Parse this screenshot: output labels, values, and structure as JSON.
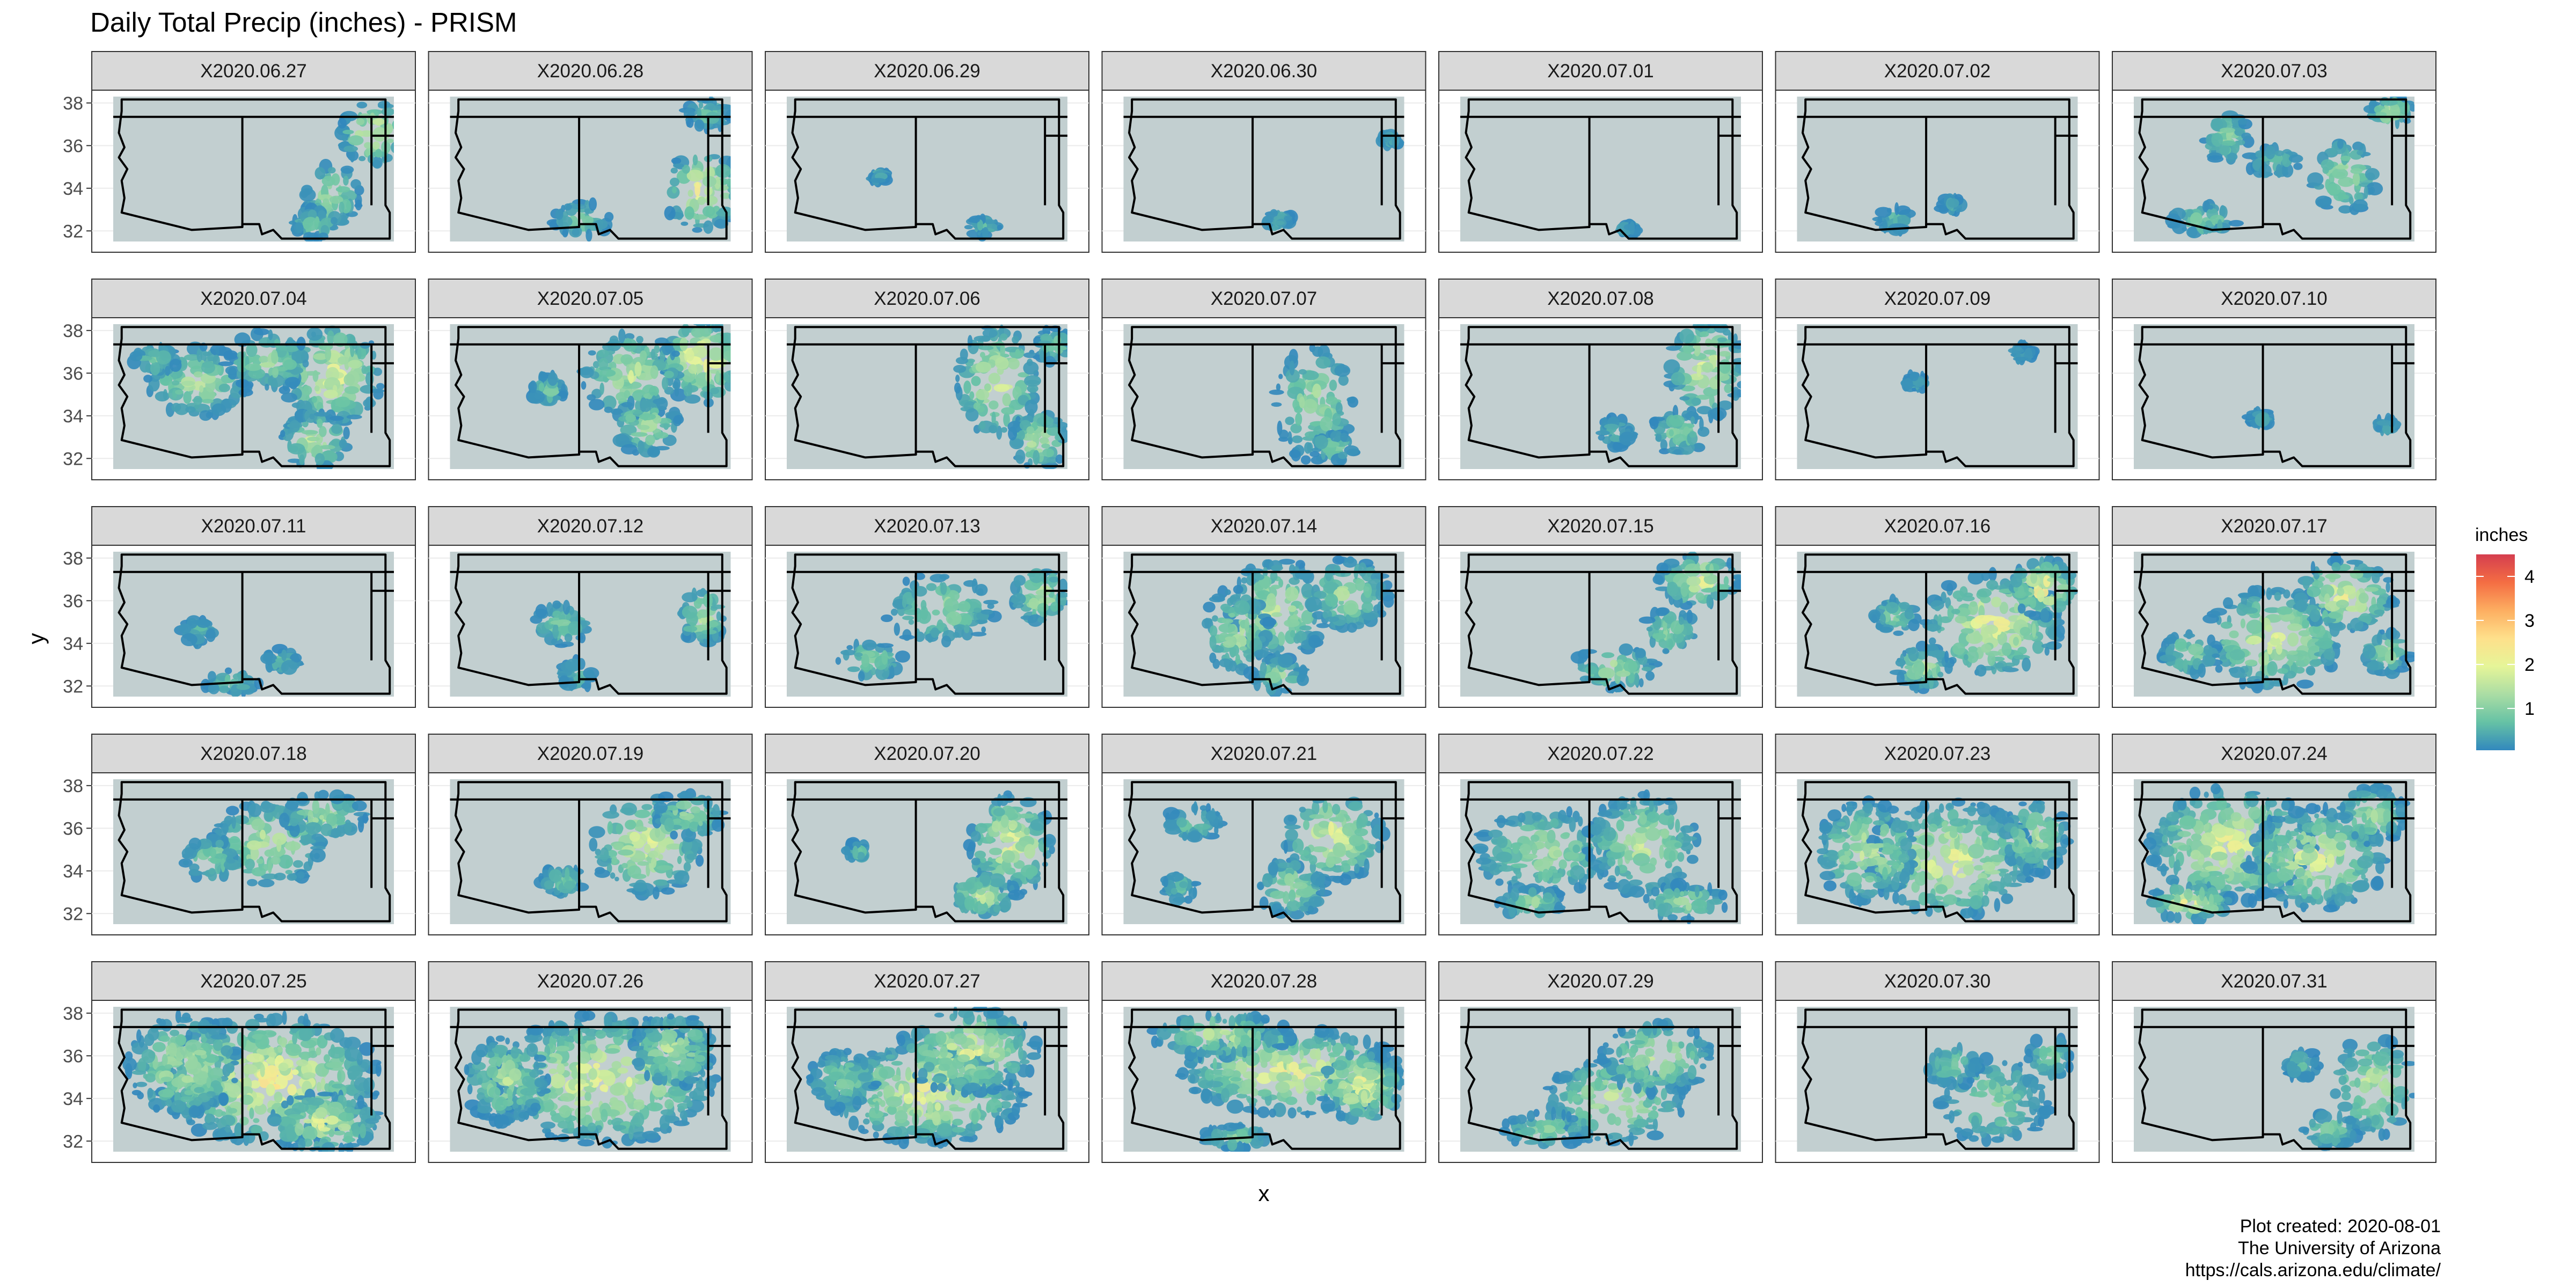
{
  "chart_data": {
    "type": "heatmap",
    "title": "Daily Total Precip (inches) - PRISM",
    "xlabel": "x",
    "ylabel": "y",
    "y_ticks": [
      32,
      34,
      36,
      38
    ],
    "ylim": [
      31,
      38.6
    ],
    "x_ticks": [],
    "grid": true,
    "facet_layout": {
      "rows": 5,
      "cols": 7
    },
    "panels": [
      {
        "label": "X2020.06.27",
        "intensity": 0.3,
        "blobs": [
          [
            0.93,
            0.25,
            0.12,
            0.22,
            0.9
          ],
          [
            0.78,
            0.68,
            0.1,
            0.22,
            0.6
          ],
          [
            0.72,
            0.88,
            0.08,
            0.1,
            0.4
          ]
        ]
      },
      {
        "label": "X2020.06.28",
        "intensity": 0.3,
        "blobs": [
          [
            0.9,
            0.65,
            0.14,
            0.28,
            0.9
          ],
          [
            0.47,
            0.85,
            0.1,
            0.12,
            0.4
          ],
          [
            0.92,
            0.12,
            0.08,
            0.1,
            0.4
          ]
        ]
      },
      {
        "label": "X2020.06.29",
        "intensity": 0.1,
        "blobs": [
          [
            0.7,
            0.9,
            0.06,
            0.06,
            0.3
          ],
          [
            0.33,
            0.55,
            0.03,
            0.04,
            0.2
          ]
        ]
      },
      {
        "label": "X2020.06.30",
        "intensity": 0.1,
        "blobs": [
          [
            0.55,
            0.85,
            0.05,
            0.05,
            0.3
          ],
          [
            0.95,
            0.3,
            0.04,
            0.04,
            0.2
          ]
        ]
      },
      {
        "label": "X2020.07.01",
        "intensity": 0.05,
        "blobs": [
          [
            0.6,
            0.92,
            0.03,
            0.03,
            0.2
          ]
        ]
      },
      {
        "label": "X2020.07.02",
        "intensity": 0.1,
        "blobs": [
          [
            0.35,
            0.85,
            0.06,
            0.08,
            0.3
          ],
          [
            0.55,
            0.75,
            0.04,
            0.05,
            0.2
          ]
        ]
      },
      {
        "label": "X2020.07.03",
        "intensity": 0.35,
        "blobs": [
          [
            0.33,
            0.28,
            0.08,
            0.18,
            0.5
          ],
          [
            0.75,
            0.55,
            0.12,
            0.25,
            0.6
          ],
          [
            0.25,
            0.85,
            0.12,
            0.1,
            0.5
          ],
          [
            0.92,
            0.1,
            0.08,
            0.1,
            0.7
          ],
          [
            0.5,
            0.45,
            0.1,
            0.1,
            0.3
          ]
        ]
      },
      {
        "label": "X2020.07.04",
        "intensity": 0.55,
        "blobs": [
          [
            0.3,
            0.4,
            0.18,
            0.25,
            0.6
          ],
          [
            0.78,
            0.35,
            0.18,
            0.35,
            0.9
          ],
          [
            0.55,
            0.25,
            0.15,
            0.2,
            0.6
          ],
          [
            0.72,
            0.8,
            0.12,
            0.2,
            0.7
          ],
          [
            0.15,
            0.25,
            0.08,
            0.1,
            0.4
          ]
        ]
      },
      {
        "label": "X2020.07.05",
        "intensity": 0.6,
        "blobs": [
          [
            0.9,
            0.25,
            0.15,
            0.3,
            1.0
          ],
          [
            0.65,
            0.35,
            0.18,
            0.3,
            0.7
          ],
          [
            0.7,
            0.7,
            0.12,
            0.2,
            0.6
          ],
          [
            0.35,
            0.45,
            0.06,
            0.1,
            0.4
          ]
        ]
      },
      {
        "label": "X2020.07.06",
        "intensity": 0.45,
        "blobs": [
          [
            0.75,
            0.4,
            0.15,
            0.4,
            0.8
          ],
          [
            0.9,
            0.8,
            0.1,
            0.2,
            0.7
          ],
          [
            0.95,
            0.15,
            0.06,
            0.12,
            0.5
          ]
        ]
      },
      {
        "label": "X2020.07.07",
        "intensity": 0.3,
        "blobs": [
          [
            0.68,
            0.55,
            0.14,
            0.4,
            0.6
          ],
          [
            0.75,
            0.85,
            0.08,
            0.1,
            0.4
          ]
        ]
      },
      {
        "label": "X2020.07.08",
        "intensity": 0.4,
        "blobs": [
          [
            0.88,
            0.3,
            0.14,
            0.35,
            0.8
          ],
          [
            0.78,
            0.75,
            0.1,
            0.15,
            0.5
          ],
          [
            0.55,
            0.75,
            0.06,
            0.1,
            0.3
          ]
        ]
      },
      {
        "label": "X2020.07.09",
        "intensity": 0.1,
        "blobs": [
          [
            0.42,
            0.4,
            0.04,
            0.05,
            0.2
          ],
          [
            0.8,
            0.2,
            0.04,
            0.05,
            0.2
          ]
        ]
      },
      {
        "label": "X2020.07.10",
        "intensity": 0.1,
        "blobs": [
          [
            0.45,
            0.65,
            0.04,
            0.05,
            0.2
          ],
          [
            0.9,
            0.7,
            0.04,
            0.05,
            0.2
          ]
        ]
      },
      {
        "label": "X2020.07.11",
        "intensity": 0.2,
        "blobs": [
          [
            0.3,
            0.55,
            0.06,
            0.08,
            0.3
          ],
          [
            0.42,
            0.9,
            0.1,
            0.08,
            0.4
          ],
          [
            0.6,
            0.75,
            0.06,
            0.08,
            0.3
          ]
        ]
      },
      {
        "label": "X2020.07.12",
        "intensity": 0.3,
        "blobs": [
          [
            0.4,
            0.5,
            0.1,
            0.15,
            0.4
          ],
          [
            0.9,
            0.45,
            0.08,
            0.2,
            0.7
          ],
          [
            0.45,
            0.85,
            0.06,
            0.1,
            0.3
          ]
        ]
      },
      {
        "label": "X2020.07.13",
        "intensity": 0.4,
        "blobs": [
          [
            0.55,
            0.4,
            0.2,
            0.25,
            0.5
          ],
          [
            0.9,
            0.3,
            0.1,
            0.2,
            0.7
          ],
          [
            0.3,
            0.75,
            0.12,
            0.12,
            0.5
          ]
        ]
      },
      {
        "label": "X2020.07.14",
        "intensity": 0.55,
        "blobs": [
          [
            0.55,
            0.4,
            0.18,
            0.35,
            0.7
          ],
          [
            0.4,
            0.55,
            0.12,
            0.3,
            0.6
          ],
          [
            0.8,
            0.3,
            0.15,
            0.25,
            0.6
          ],
          [
            0.55,
            0.85,
            0.1,
            0.12,
            0.5
          ]
        ]
      },
      {
        "label": "X2020.07.15",
        "intensity": 0.45,
        "blobs": [
          [
            0.85,
            0.2,
            0.15,
            0.18,
            0.8
          ],
          [
            0.55,
            0.8,
            0.15,
            0.15,
            0.6
          ],
          [
            0.75,
            0.55,
            0.1,
            0.15,
            0.5
          ]
        ]
      },
      {
        "label": "X2020.07.16",
        "intensity": 0.65,
        "blobs": [
          [
            0.7,
            0.5,
            0.25,
            0.35,
            0.9
          ],
          [
            0.88,
            0.25,
            0.12,
            0.2,
            1.0
          ],
          [
            0.35,
            0.45,
            0.08,
            0.12,
            0.5
          ],
          [
            0.45,
            0.8,
            0.1,
            0.15,
            0.6
          ]
        ]
      },
      {
        "label": "X2020.07.17",
        "intensity": 0.6,
        "blobs": [
          [
            0.5,
            0.6,
            0.25,
            0.35,
            0.8
          ],
          [
            0.75,
            0.3,
            0.18,
            0.25,
            0.9
          ],
          [
            0.2,
            0.7,
            0.1,
            0.15,
            0.5
          ],
          [
            0.9,
            0.7,
            0.08,
            0.15,
            0.6
          ]
        ]
      },
      {
        "label": "X2020.07.18",
        "intensity": 0.55,
        "blobs": [
          [
            0.55,
            0.45,
            0.2,
            0.3,
            0.7
          ],
          [
            0.75,
            0.25,
            0.15,
            0.15,
            0.6
          ],
          [
            0.35,
            0.55,
            0.1,
            0.15,
            0.5
          ]
        ]
      },
      {
        "label": "X2020.07.19",
        "intensity": 0.5,
        "blobs": [
          [
            0.7,
            0.45,
            0.2,
            0.35,
            0.8
          ],
          [
            0.85,
            0.25,
            0.12,
            0.15,
            0.7
          ],
          [
            0.4,
            0.7,
            0.08,
            0.1,
            0.4
          ]
        ]
      },
      {
        "label": "X2020.07.20",
        "intensity": 0.55,
        "blobs": [
          [
            0.8,
            0.45,
            0.15,
            0.35,
            0.9
          ],
          [
            0.7,
            0.8,
            0.12,
            0.15,
            0.7
          ],
          [
            0.25,
            0.5,
            0.04,
            0.06,
            0.3
          ]
        ]
      },
      {
        "label": "X2020.07.21",
        "intensity": 0.5,
        "blobs": [
          [
            0.75,
            0.4,
            0.18,
            0.3,
            0.9
          ],
          [
            0.6,
            0.75,
            0.12,
            0.2,
            0.6
          ],
          [
            0.25,
            0.3,
            0.1,
            0.12,
            0.4
          ],
          [
            0.2,
            0.75,
            0.06,
            0.1,
            0.3
          ]
        ]
      },
      {
        "label": "X2020.07.22",
        "intensity": 0.55,
        "blobs": [
          [
            0.3,
            0.5,
            0.25,
            0.3,
            0.6
          ],
          [
            0.65,
            0.45,
            0.2,
            0.35,
            0.7
          ],
          [
            0.25,
            0.85,
            0.12,
            0.1,
            0.5
          ],
          [
            0.8,
            0.85,
            0.15,
            0.12,
            0.6
          ]
        ]
      },
      {
        "label": "X2020.07.23",
        "intensity": 0.7,
        "blobs": [
          [
            0.55,
            0.55,
            0.3,
            0.4,
            0.9
          ],
          [
            0.25,
            0.5,
            0.18,
            0.35,
            0.7
          ],
          [
            0.85,
            0.4,
            0.12,
            0.25,
            0.6
          ]
        ]
      },
      {
        "label": "X2020.07.24",
        "intensity": 0.75,
        "blobs": [
          [
            0.35,
            0.45,
            0.3,
            0.4,
            0.9
          ],
          [
            0.65,
            0.55,
            0.25,
            0.35,
            0.8
          ],
          [
            0.2,
            0.85,
            0.15,
            0.12,
            0.9
          ],
          [
            0.85,
            0.25,
            0.12,
            0.2,
            0.6
          ]
        ]
      },
      {
        "label": "X2020.07.25",
        "intensity": 0.85,
        "blobs": [
          [
            0.55,
            0.5,
            0.4,
            0.45,
            1.0
          ],
          [
            0.25,
            0.4,
            0.2,
            0.35,
            0.7
          ],
          [
            0.75,
            0.8,
            0.2,
            0.2,
            0.8
          ]
        ]
      },
      {
        "label": "X2020.07.26",
        "intensity": 0.8,
        "blobs": [
          [
            0.55,
            0.5,
            0.4,
            0.45,
            0.9
          ],
          [
            0.2,
            0.5,
            0.15,
            0.3,
            0.6
          ],
          [
            0.8,
            0.3,
            0.15,
            0.25,
            0.7
          ]
        ]
      },
      {
        "label": "X2020.07.27",
        "intensity": 0.8,
        "blobs": [
          [
            0.5,
            0.6,
            0.35,
            0.35,
            0.9
          ],
          [
            0.65,
            0.3,
            0.25,
            0.3,
            0.8
          ],
          [
            0.2,
            0.5,
            0.12,
            0.2,
            0.5
          ]
        ]
      },
      {
        "label": "X2020.07.28",
        "intensity": 0.8,
        "blobs": [
          [
            0.6,
            0.45,
            0.4,
            0.3,
            0.9
          ],
          [
            0.35,
            0.2,
            0.25,
            0.15,
            0.7
          ],
          [
            0.85,
            0.55,
            0.15,
            0.25,
            0.9
          ],
          [
            0.4,
            0.9,
            0.12,
            0.08,
            0.5
          ]
        ]
      },
      {
        "label": "X2020.07.29",
        "intensity": 0.55,
        "blobs": [
          [
            0.55,
            0.65,
            0.25,
            0.3,
            0.7
          ],
          [
            0.7,
            0.35,
            0.2,
            0.25,
            0.7
          ],
          [
            0.3,
            0.85,
            0.15,
            0.12,
            0.5
          ]
        ]
      },
      {
        "label": "X2020.07.30",
        "intensity": 0.35,
        "blobs": [
          [
            0.7,
            0.65,
            0.2,
            0.3,
            0.5
          ],
          [
            0.55,
            0.4,
            0.1,
            0.15,
            0.4
          ],
          [
            0.9,
            0.35,
            0.08,
            0.15,
            0.5
          ]
        ]
      },
      {
        "label": "X2020.07.31",
        "intensity": 0.35,
        "blobs": [
          [
            0.85,
            0.55,
            0.15,
            0.35,
            0.7
          ],
          [
            0.7,
            0.85,
            0.1,
            0.12,
            0.5
          ],
          [
            0.6,
            0.4,
            0.06,
            0.1,
            0.3
          ]
        ]
      }
    ],
    "legend": {
      "title": "inches",
      "placement": "right",
      "min": 0.05,
      "max": 4.5,
      "breaks": [
        1,
        2,
        3,
        4
      ],
      "labels": [
        "1",
        "2",
        "3",
        "4"
      ],
      "palette": [
        "#3288bd",
        "#66c2a5",
        "#abdda4",
        "#e6f598",
        "#fee08b",
        "#fdae61",
        "#f46d43",
        "#d53e4f"
      ]
    },
    "colors": {
      "land": "#c2cfd0",
      "strip": "#d9d9d9",
      "border": "#000000"
    }
  },
  "caption": {
    "line1": "Plot created: 2020-08-01",
    "line2": "The University of Arizona",
    "line3": "https://cals.arizona.edu/climate/"
  }
}
